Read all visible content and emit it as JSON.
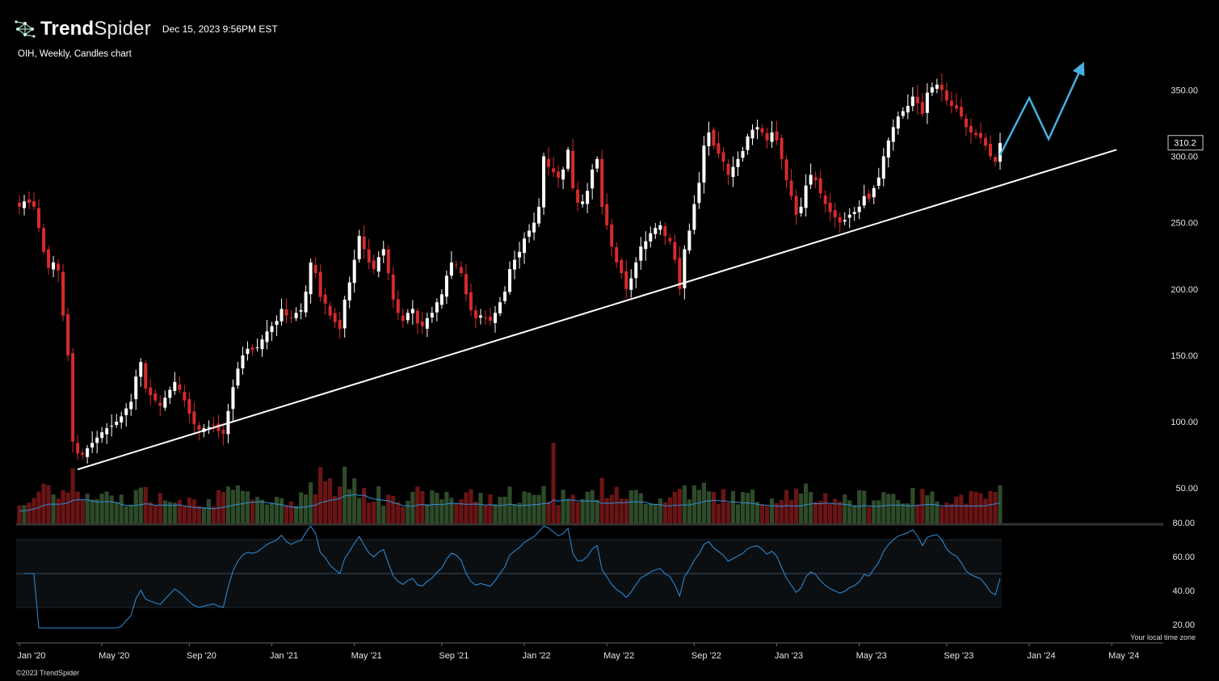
{
  "header": {
    "brand_bold": "Trend",
    "brand_light": "Spider",
    "timestamp": "Dec 15, 2023 9:56PM EST",
    "subtitle": "OIH, Weekly, Candles chart",
    "logo_icon": "trendspider-network-icon"
  },
  "footer": {
    "copyright": "©2023 TrendSpider",
    "timezone_note": "Your local time zone"
  },
  "chart_data": {
    "type": "candlestick",
    "symbol": "OIH",
    "interval": "Weekly",
    "price_axis": {
      "ticks": [
        350,
        300,
        250,
        200,
        150,
        100,
        50
      ],
      "tick_labels": [
        "350.00",
        "300.00",
        "250.00",
        "200.00",
        "150.00",
        "100.00",
        "50.00"
      ],
      "range": [
        35,
        375
      ]
    },
    "last_price": 310.2,
    "last_price_label": "310.2",
    "time_axis": {
      "labels": [
        "Jan '20",
        "May '20",
        "Sep '20",
        "Jan '21",
        "May '21",
        "Sep '21",
        "Jan '22",
        "May '22",
        "Sep '22",
        "Jan '23",
        "May '23",
        "Sep '23",
        "Jan '24",
        "May '24"
      ],
      "label_weeks": [
        0,
        17,
        35,
        52,
        69,
        87,
        104,
        121,
        139,
        156,
        173,
        191,
        208,
        225
      ],
      "weeks_shown": 203
    },
    "price_anchors": [
      [
        0,
        262
      ],
      [
        1,
        266
      ],
      [
        2,
        265
      ],
      [
        3,
        262
      ],
      [
        4,
        246
      ],
      [
        5,
        228
      ],
      [
        6,
        216
      ],
      [
        7,
        220
      ],
      [
        8,
        214
      ],
      [
        9,
        180
      ],
      [
        10,
        150
      ],
      [
        11,
        85
      ],
      [
        12,
        76
      ],
      [
        13,
        75
      ],
      [
        14,
        80
      ],
      [
        15,
        84
      ],
      [
        16,
        88
      ],
      [
        17,
        92
      ],
      [
        18,
        95
      ],
      [
        19,
        97
      ],
      [
        20,
        100
      ],
      [
        21,
        104
      ],
      [
        22,
        110
      ],
      [
        23,
        115
      ],
      [
        24,
        134
      ],
      [
        25,
        145
      ],
      [
        26,
        125
      ],
      [
        27,
        120
      ],
      [
        28,
        116
      ],
      [
        29,
        112
      ],
      [
        30,
        118
      ],
      [
        31,
        124
      ],
      [
        32,
        130
      ],
      [
        33,
        124
      ],
      [
        34,
        116
      ],
      [
        35,
        106
      ],
      [
        36,
        98
      ],
      [
        37,
        94
      ],
      [
        38,
        95
      ],
      [
        39,
        96
      ],
      [
        40,
        97
      ],
      [
        41,
        93
      ],
      [
        42,
        91
      ],
      [
        43,
        108
      ],
      [
        44,
        126
      ],
      [
        45,
        140
      ],
      [
        46,
        150
      ],
      [
        47,
        155
      ],
      [
        48,
        154
      ],
      [
        49,
        156
      ],
      [
        50,
        162
      ],
      [
        51,
        168
      ],
      [
        52,
        172
      ],
      [
        53,
        176
      ],
      [
        54,
        185
      ],
      [
        55,
        180
      ],
      [
        56,
        178
      ],
      [
        57,
        182
      ],
      [
        58,
        184
      ],
      [
        59,
        198
      ],
      [
        60,
        220
      ],
      [
        61,
        212
      ],
      [
        62,
        194
      ],
      [
        63,
        189
      ],
      [
        64,
        180
      ],
      [
        65,
        175
      ],
      [
        66,
        170
      ],
      [
        67,
        192
      ],
      [
        68,
        205
      ],
      [
        69,
        222
      ],
      [
        70,
        240
      ],
      [
        71,
        230
      ],
      [
        72,
        220
      ],
      [
        73,
        215
      ],
      [
        74,
        224
      ],
      [
        75,
        230
      ],
      [
        76,
        212
      ],
      [
        77,
        192
      ],
      [
        78,
        182
      ],
      [
        79,
        176
      ],
      [
        80,
        182
      ],
      [
        81,
        185
      ],
      [
        82,
        174
      ],
      [
        83,
        172
      ],
      [
        84,
        178
      ],
      [
        85,
        182
      ],
      [
        86,
        190
      ],
      [
        87,
        196
      ],
      [
        88,
        210
      ],
      [
        89,
        220
      ],
      [
        90,
        218
      ],
      [
        91,
        212
      ],
      [
        92,
        196
      ],
      [
        93,
        184
      ],
      [
        94,
        178
      ],
      [
        95,
        180
      ],
      [
        96,
        178
      ],
      [
        97,
        176
      ],
      [
        98,
        182
      ],
      [
        99,
        190
      ],
      [
        100,
        198
      ],
      [
        101,
        215
      ],
      [
        102,
        222
      ],
      [
        103,
        228
      ],
      [
        104,
        238
      ],
      [
        105,
        244
      ],
      [
        106,
        250
      ],
      [
        107,
        262
      ],
      [
        108,
        300
      ],
      [
        109,
        292
      ],
      [
        110,
        288
      ],
      [
        111,
        284
      ],
      [
        112,
        290
      ],
      [
        113,
        305
      ],
      [
        114,
        276
      ],
      [
        115,
        265
      ],
      [
        116,
        266
      ],
      [
        117,
        274
      ],
      [
        118,
        290
      ],
      [
        119,
        298
      ],
      [
        120,
        262
      ],
      [
        121,
        248
      ],
      [
        122,
        232
      ],
      [
        123,
        220
      ],
      [
        124,
        212
      ],
      [
        125,
        200
      ],
      [
        126,
        208
      ],
      [
        127,
        220
      ],
      [
        128,
        232
      ],
      [
        129,
        236
      ],
      [
        130,
        242
      ],
      [
        131,
        246
      ],
      [
        132,
        248
      ],
      [
        133,
        240
      ],
      [
        134,
        236
      ],
      [
        135,
        222
      ],
      [
        136,
        200
      ],
      [
        137,
        230
      ],
      [
        138,
        244
      ],
      [
        139,
        264
      ],
      [
        140,
        280
      ],
      [
        141,
        308
      ],
      [
        142,
        318
      ],
      [
        143,
        308
      ],
      [
        144,
        302
      ],
      [
        145,
        296
      ],
      [
        146,
        286
      ],
      [
        147,
        292
      ],
      [
        148,
        298
      ],
      [
        149,
        304
      ],
      [
        150,
        315
      ],
      [
        151,
        320
      ],
      [
        152,
        322
      ],
      [
        153,
        318
      ],
      [
        154,
        312
      ],
      [
        155,
        318
      ],
      [
        156,
        312
      ],
      [
        157,
        298
      ],
      [
        158,
        282
      ],
      [
        159,
        270
      ],
      [
        160,
        256
      ],
      [
        161,
        262
      ],
      [
        162,
        278
      ],
      [
        163,
        286
      ],
      [
        164,
        282
      ],
      [
        165,
        272
      ],
      [
        166,
        264
      ],
      [
        167,
        258
      ],
      [
        168,
        254
      ],
      [
        169,
        250
      ],
      [
        170,
        252
      ],
      [
        171,
        256
      ],
      [
        172,
        258
      ],
      [
        173,
        262
      ],
      [
        174,
        270
      ],
      [
        175,
        268
      ],
      [
        176,
        276
      ],
      [
        177,
        284
      ],
      [
        178,
        300
      ],
      [
        179,
        312
      ],
      [
        180,
        322
      ],
      [
        181,
        330
      ],
      [
        182,
        334
      ],
      [
        183,
        338
      ],
      [
        184,
        345
      ],
      [
        185,
        340
      ],
      [
        186,
        332
      ],
      [
        187,
        348
      ],
      [
        188,
        352
      ],
      [
        189,
        354
      ],
      [
        190,
        350
      ],
      [
        191,
        342
      ],
      [
        192,
        338
      ],
      [
        193,
        336
      ],
      [
        194,
        330
      ],
      [
        195,
        322
      ],
      [
        196,
        318
      ],
      [
        197,
        316
      ],
      [
        198,
        314
      ],
      [
        199,
        308
      ],
      [
        200,
        300
      ],
      [
        201,
        296
      ],
      [
        202,
        310
      ]
    ],
    "trendline": {
      "from": [
        12,
        64
      ],
      "to": [
        226,
        305
      ],
      "color": "#ffffff"
    },
    "projection": {
      "points": [
        [
          202,
          301
        ],
        [
          208,
          344
        ],
        [
          212,
          313
        ],
        [
          219,
          369
        ]
      ],
      "color": "#45b1e0"
    },
    "volume": {
      "avg_color": "#2f8fdc",
      "up_color": "#2e4b29",
      "down_color": "#6b1414",
      "spike_week": 110
    },
    "rsi": {
      "ticks": [
        80,
        60,
        40,
        20
      ],
      "tick_labels": [
        "80.00",
        "60.00",
        "40.00",
        "20.00"
      ],
      "band": [
        70,
        30
      ],
      "mid": 50,
      "line_color": "#2f8fdc"
    },
    "colors": {
      "up": "#ffffff",
      "down": "#d62b2b",
      "grid": "none",
      "background": "#000000"
    }
  }
}
